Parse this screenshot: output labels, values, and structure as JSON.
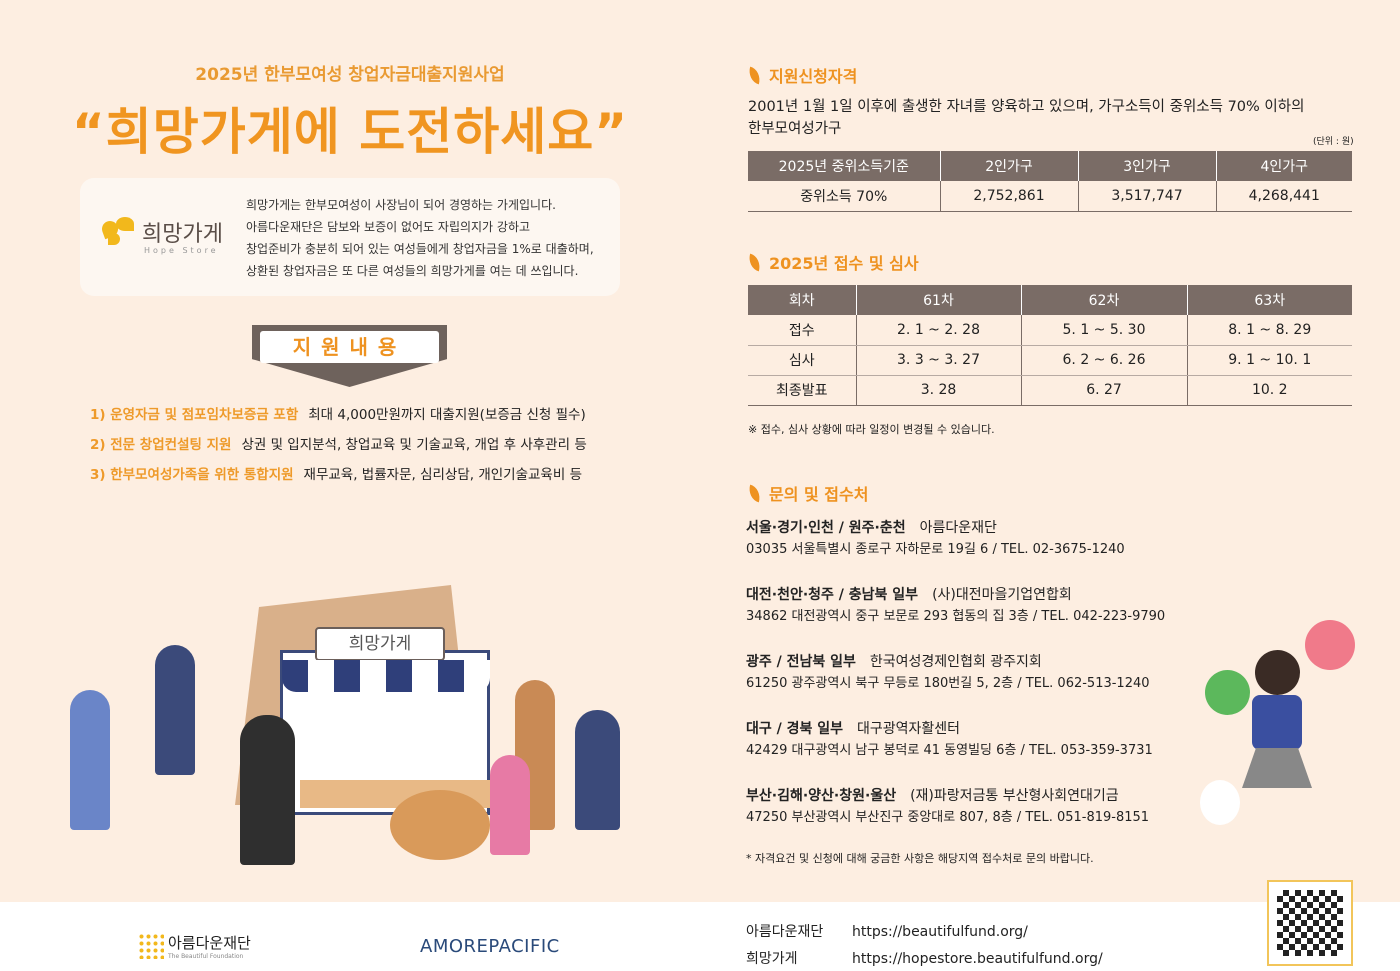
{
  "header": {
    "subtitle": "2025년 한부모여성 창업자금대출지원사업",
    "title": "“희망가게에 도전하세요”"
  },
  "intro": {
    "logo_text": "희망가게",
    "logo_sub": "Hope Store",
    "lines": [
      "희망가게는 한부모여성이 사장님이 되어 경영하는 가게입니다.",
      "아름다운재단은 담보와 보증이 없어도 자립의지가 강하고",
      "창업준비가 충분히 되어 있는 여성들에게 창업자금을 1%로 대출하며,",
      "상환된 창업자금은 또 다른 여성들의 희망가게를 여는 데 쓰입니다."
    ]
  },
  "support": {
    "banner": "지원내용",
    "items": [
      {
        "title": "1) 운영자금 및 점포임차보증금 포함",
        "desc": "최대 4,000만원까지 대출지원(보증금 신청 필수)"
      },
      {
        "title": "2) 전문 창업컨설팅 지원",
        "desc": "상권 및 입지분석, 창업교육 및 기술교육, 개업 후 사후관리 등"
      },
      {
        "title": "3) 한부모여성가족을 위한 통합지원",
        "desc": "재무교육, 법률자문, 심리상담, 개인기술교육비 등"
      }
    ]
  },
  "illustration": {
    "sign": "희망가게"
  },
  "eligibility": {
    "heading": "지원신청자격",
    "text1": "2001년 1월 1일 이후에 출생한 자녀를 양육하고 있으며, 가구소득이 중위소득 70% 이하의",
    "text2": "한부모여성가구",
    "unit": "(단위 : 원)",
    "headers": [
      "2025년 중위소득기준",
      "2인가구",
      "3인가구",
      "4인가구"
    ],
    "row": [
      "중위소득 70%",
      "2,752,861",
      "3,517,747",
      "4,268,441"
    ]
  },
  "schedule": {
    "heading": "2025년 접수 및 심사",
    "headers": [
      "회차",
      "61차",
      "62차",
      "63차"
    ],
    "rows": [
      [
        "접수",
        "2. 1 ~ 2. 28",
        "5. 1 ~ 5. 30",
        "8. 1 ~ 8. 29"
      ],
      [
        "심사",
        "3. 3 ~ 3. 27",
        "6. 2 ~ 6. 26",
        "9. 1 ~ 10. 1"
      ],
      [
        "최종발표",
        "3. 28",
        "6. 27",
        "10. 2"
      ]
    ],
    "note": "※ 접수, 심사 상황에 따라 일정이 변경될 수 있습니다."
  },
  "contacts": {
    "heading": "문의 및 접수처",
    "items": [
      {
        "region": "서울·경기·인천 / 원주·춘천",
        "org": "아름다운재단",
        "addr": "03035 서울특별시 종로구 자하문로 19길 6  /  TEL. 02-3675-1240"
      },
      {
        "region": "대전·천안·청주 / 충남북 일부",
        "org": "(사)대전마을기업연합회",
        "addr": "34862 대전광역시 중구 보문로 293 협동의 집 3층  /  TEL. 042-223-9790"
      },
      {
        "region": "광주 / 전남북 일부",
        "org": "한국여성경제인협회 광주지회",
        "addr": "61250 광주광역시 북구 무등로 180번길 5, 2층  /  TEL. 062-513-1240"
      },
      {
        "region": "대구 / 경북 일부",
        "org": "대구광역자활센터",
        "addr": "42429 대구광역시 남구 봉덕로 41 동영빌딩 6층  /  TEL. 053-359-3731"
      },
      {
        "region": "부산·김해·양산·창원·울산",
        "org": "(재)파랑저금통 부산형사회연대기금",
        "addr": "47250 부산광역시 부산진구 중앙대로 807, 8층  /  TEL. 051-819-8151"
      }
    ],
    "note": "* 자격요건 및 신청에 대해 궁금한 사항은 해당지역 접수처로 문의 바랍니다."
  },
  "footer": {
    "logo1": "아름다운재단",
    "logo1_sub": "The Beautiful Foundation",
    "logo2": "AMOREPACIFIC",
    "links": [
      {
        "label": "아름다운재단",
        "url": "https://beautifulfund.org/"
      },
      {
        "label": "희망가게",
        "url": "https://hopestore.beautifulfund.org/"
      }
    ]
  },
  "colors": {
    "accent": "#ee9a2a",
    "background": "#fdeee1",
    "table_header": "#7a6c66"
  }
}
